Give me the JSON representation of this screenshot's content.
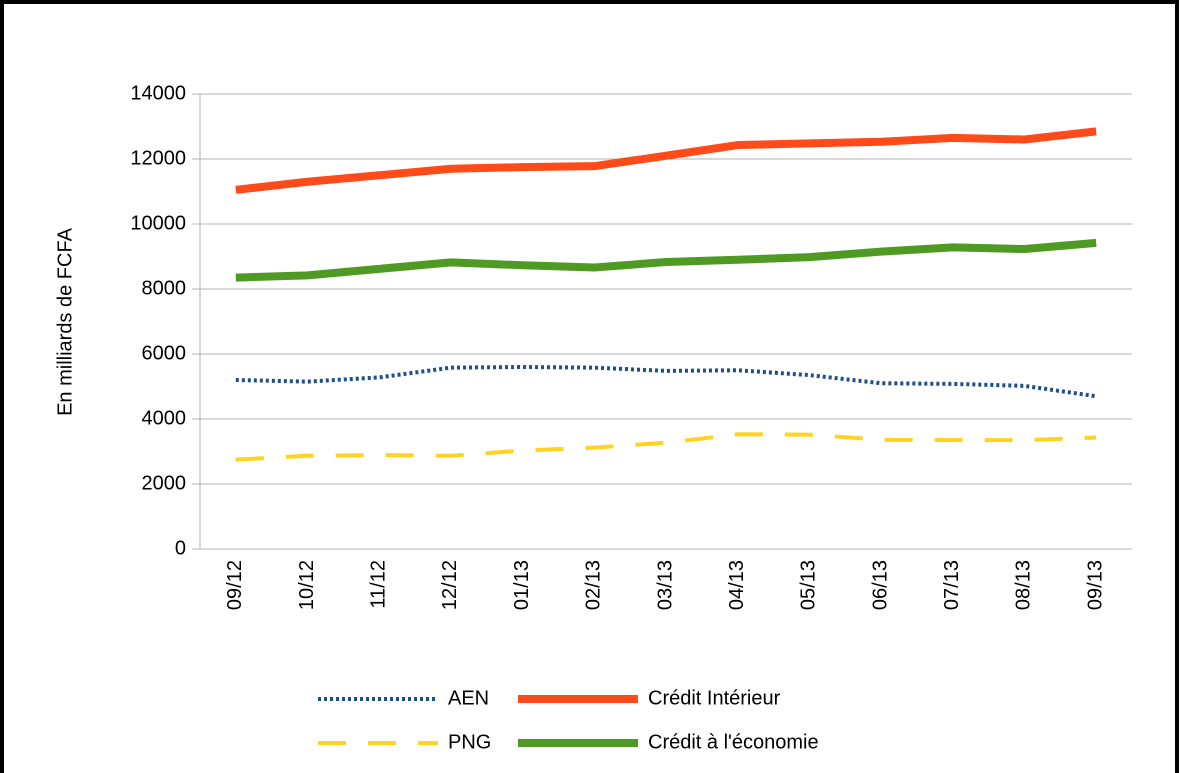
{
  "chart_data": {
    "type": "line",
    "y_label": "En milliards de FCFA",
    "categories": [
      "09/12",
      "10/12",
      "11/12",
      "12/12",
      "01/13",
      "02/13",
      "03/13",
      "04/13",
      "05/13",
      "06/13",
      "07/13",
      "08/13",
      "09/13"
    ],
    "series": [
      {
        "name": "AEN",
        "color": "#1f4e8c",
        "line_style": "dotted",
        "values": [
          5200,
          5150,
          5280,
          5580,
          5600,
          5580,
          5480,
          5500,
          5350,
          5100,
          5080,
          5020,
          4700
        ]
      },
      {
        "name": "Crédit Intérieur",
        "color": "#ff4a1a",
        "line_style": "solid",
        "values": [
          11050,
          11300,
          11500,
          11700,
          11750,
          11780,
          12100,
          12430,
          12480,
          12530,
          12650,
          12600,
          12850
        ]
      },
      {
        "name": "PNG",
        "color": "#ffd320",
        "line_style": "dashed",
        "values": [
          2750,
          2870,
          2890,
          2870,
          3030,
          3120,
          3270,
          3530,
          3520,
          3360,
          3350,
          3350,
          3430
        ]
      },
      {
        "name": "Crédit à l'économie",
        "color": "#4e9a22",
        "line_style": "solid",
        "values": [
          8350,
          8420,
          8620,
          8820,
          8730,
          8660,
          8830,
          8900,
          8980,
          9150,
          9280,
          9230,
          9420
        ]
      }
    ],
    "ylim": [
      0,
      14000
    ],
    "yticks": [
      0,
      2000,
      4000,
      6000,
      8000,
      10000,
      12000,
      14000
    ],
    "grid": true
  }
}
